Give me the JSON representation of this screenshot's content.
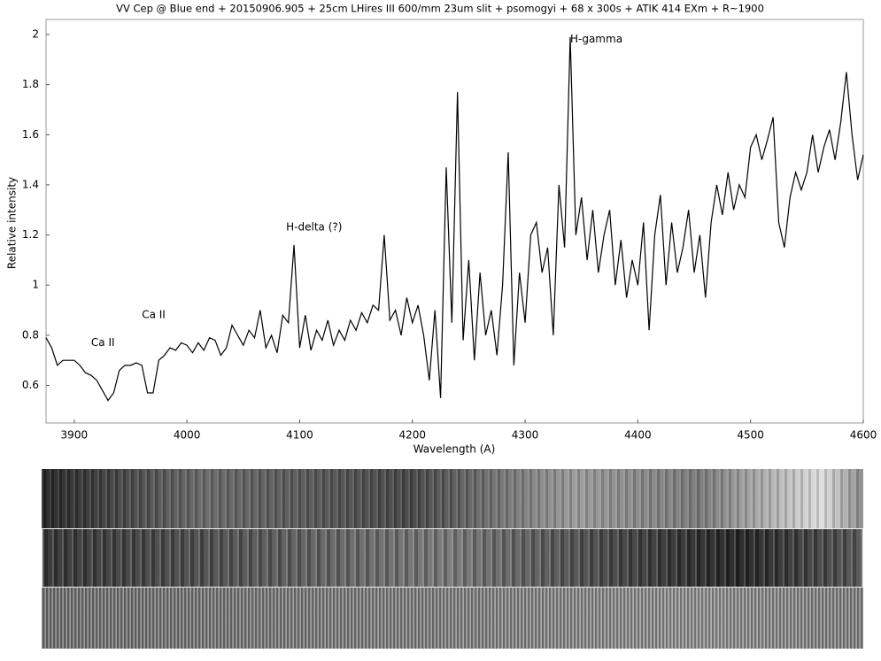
{
  "chart_data": {
    "type": "line",
    "title": "VV Cep @ Blue end + 20150906.905 + 25cm LHires III 600/mm 23um slit + psomogyi + 68 x 300s + ATIK 414 EXm + R~1900",
    "x_label": "Wavelength (A)",
    "y_label": "Relative intensity",
    "color": "#000000",
    "x": [
      3875,
      3880,
      3885,
      3890,
      3895,
      3900,
      3905,
      3910,
      3915,
      3920,
      3925,
      3930,
      3935,
      3940,
      3945,
      3950,
      3955,
      3960,
      3965,
      3970,
      3975,
      3980,
      3985,
      3990,
      3995,
      4000,
      4005,
      4010,
      4015,
      4020,
      4025,
      4030,
      4035,
      4040,
      4045,
      4050,
      4055,
      4060,
      4065,
      4070,
      4075,
      4080,
      4085,
      4090,
      4095,
      4100,
      4105,
      4110,
      4115,
      4120,
      4125,
      4130,
      4135,
      4140,
      4145,
      4150,
      4155,
      4160,
      4165,
      4170,
      4175,
      4180,
      4185,
      4190,
      4195,
      4200,
      4205,
      4210,
      4215,
      4220,
      4225,
      4230,
      4235,
      4240,
      4245,
      4250,
      4255,
      4260,
      4265,
      4270,
      4275,
      4280,
      4285,
      4290,
      4295,
      4300,
      4305,
      4310,
      4315,
      4320,
      4325,
      4330,
      4335,
      4340,
      4345,
      4350,
      4355,
      4360,
      4365,
      4370,
      4375,
      4380,
      4385,
      4390,
      4395,
      4400,
      4405,
      4410,
      4415,
      4420,
      4425,
      4430,
      4435,
      4440,
      4445,
      4450,
      4455,
      4460,
      4465,
      4470,
      4475,
      4480,
      4485,
      4490,
      4495,
      4500,
      4505,
      4510,
      4515,
      4520,
      4525,
      4530,
      4535,
      4540,
      4545,
      4550,
      4555,
      4560,
      4565,
      4570,
      4575,
      4580,
      4585,
      4590,
      4595,
      4600
    ],
    "values": [
      0.79,
      0.75,
      0.68,
      0.7,
      0.7,
      0.7,
      0.68,
      0.65,
      0.64,
      0.62,
      0.58,
      0.54,
      0.57,
      0.66,
      0.68,
      0.68,
      0.69,
      0.68,
      0.57,
      0.57,
      0.7,
      0.72,
      0.75,
      0.74,
      0.77,
      0.76,
      0.73,
      0.77,
      0.74,
      0.79,
      0.78,
      0.72,
      0.75,
      0.84,
      0.8,
      0.76,
      0.82,
      0.79,
      0.9,
      0.75,
      0.8,
      0.73,
      0.88,
      0.85,
      1.16,
      0.75,
      0.88,
      0.74,
      0.82,
      0.78,
      0.86,
      0.76,
      0.82,
      0.78,
      0.86,
      0.82,
      0.89,
      0.85,
      0.92,
      0.9,
      1.2,
      0.86,
      0.9,
      0.8,
      0.95,
      0.85,
      0.92,
      0.8,
      0.62,
      0.9,
      0.55,
      1.47,
      0.85,
      1.77,
      0.78,
      1.1,
      0.7,
      1.05,
      0.8,
      0.9,
      0.72,
      1.0,
      1.53,
      0.68,
      1.05,
      0.85,
      1.2,
      1.25,
      1.05,
      1.15,
      0.8,
      1.4,
      1.15,
      1.99,
      1.2,
      1.35,
      1.1,
      1.3,
      1.05,
      1.2,
      1.3,
      1.0,
      1.18,
      0.95,
      1.1,
      1.0,
      1.25,
      0.82,
      1.2,
      1.36,
      1.0,
      1.25,
      1.05,
      1.15,
      1.3,
      1.05,
      1.2,
      0.95,
      1.25,
      1.4,
      1.28,
      1.45,
      1.3,
      1.4,
      1.35,
      1.55,
      1.6,
      1.5,
      1.58,
      1.67,
      1.25,
      1.15,
      1.35,
      1.45,
      1.38,
      1.45,
      1.6,
      1.45,
      1.55,
      1.62,
      1.5,
      1.65,
      1.85,
      1.6,
      1.42,
      1.52
    ],
    "xlim": [
      3875,
      4600
    ],
    "ylim": [
      0.45,
      2.06
    ],
    "xticks": [
      3900,
      4000,
      4100,
      4200,
      4300,
      4400,
      4500,
      4600
    ],
    "yticks": [
      0.6,
      0.8,
      1,
      1.2,
      1.4,
      1.6,
      1.8,
      2
    ],
    "annotations": [
      {
        "text": "Ca II",
        "x": 3915,
        "y": 0.77
      },
      {
        "text": "Ca II",
        "x": 3960,
        "y": 0.88
      },
      {
        "text": "H-delta (?)",
        "x": 4088,
        "y": 1.23
      },
      {
        "text": "H-gamma",
        "x": 4340,
        "y": 1.98
      }
    ]
  }
}
